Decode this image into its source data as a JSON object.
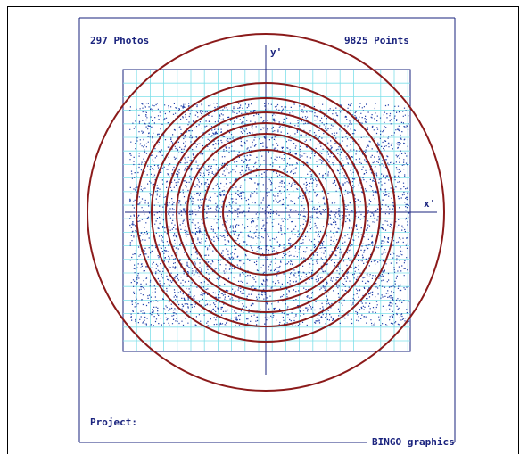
{
  "header": {
    "photos": "297 Photos",
    "points": "9825 Points"
  },
  "axes": {
    "x_label": "x'",
    "y_label": "y'"
  },
  "footer": {
    "project": "Project:",
    "brand": "BINGO graphics"
  },
  "colors": {
    "frame": "#1a237e",
    "grid": "#7fe0ea",
    "points": "#1f3fa8",
    "circles": "#8b1a1a",
    "text": "#1a237e"
  }
}
